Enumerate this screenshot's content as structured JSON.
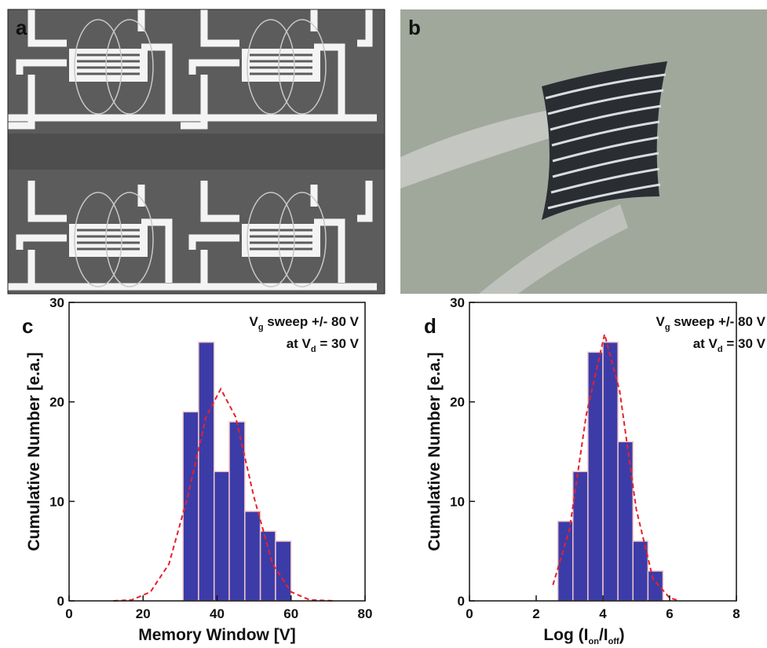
{
  "panels": [
    "a",
    "b",
    "c",
    "d"
  ],
  "chart_data": [
    {
      "type": "histogram",
      "xlabel": [
        "Memory Window [V]"
      ],
      "ylabel": "Cumulative Number [e.a.]",
      "annotations": [
        [
          "V",
          "g",
          " sweep +/- 80 V"
        ],
        [
          "at V",
          "d",
          " = 30 V"
        ]
      ],
      "bins": [
        30.8,
        35,
        39.2,
        43.3,
        47.5,
        51.7,
        55.8,
        60
      ],
      "values": [
        19,
        26,
        13,
        18,
        9,
        7,
        6
      ],
      "color": "#3c3ca8",
      "fit": {
        "x": [
          12,
          17,
          22,
          27,
          32,
          37,
          41,
          45,
          50,
          55,
          60,
          65,
          72
        ],
        "values": [
          0,
          0.1,
          0.9,
          3.7,
          10.4,
          18.5,
          21.3,
          18.5,
          10.4,
          3.7,
          0.9,
          0.1,
          0
        ],
        "color": "#e8202a",
        "style": "dashed"
      },
      "xlim": [
        0,
        80
      ],
      "xticks": [
        0,
        20,
        40,
        60,
        80
      ],
      "ylim": [
        0,
        30
      ],
      "yticks": [
        0,
        10,
        20,
        30
      ]
    },
    {
      "type": "histogram",
      "xlabel": [
        "Log (I",
        "on",
        "/I",
        "off",
        ")"
      ],
      "ylabel": "Cumulative Number [e.a.]",
      "annotations": [
        [
          "V",
          "g",
          " sweep +/- 80 V"
        ],
        [
          "at V",
          "d",
          " = 30 V"
        ]
      ],
      "bins": [
        2.65,
        3.1,
        3.55,
        4.0,
        4.45,
        4.9,
        5.35,
        5.8
      ],
      "values": [
        8,
        13,
        25,
        26,
        16,
        6,
        3
      ],
      "color": "#3c3ca8",
      "fit": {
        "x": [
          2.5,
          3.0,
          3.5,
          4.05,
          4.5,
          5.0,
          5.5,
          6.0,
          6.3
        ],
        "values": [
          1.6,
          7.2,
          18.7,
          26.8,
          21.1,
          9.2,
          2.2,
          0.3,
          0
        ],
        "color": "#e8202a",
        "style": "dashed"
      },
      "xlim": [
        0,
        8
      ],
      "xticks": [
        0,
        2,
        4,
        6,
        8
      ],
      "ylim": [
        0,
        30
      ],
      "yticks": [
        0,
        10,
        20,
        30
      ]
    }
  ]
}
